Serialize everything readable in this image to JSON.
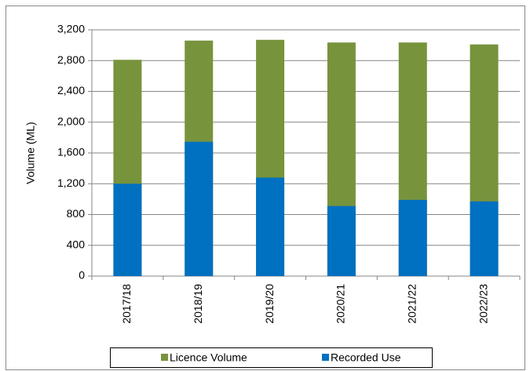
{
  "chart_data": {
    "type": "bar",
    "overlap": true,
    "y_label": "Volume (ML)",
    "categories": [
      "2017/18",
      "2018/19",
      "2019/20",
      "2020/21",
      "2021/22",
      "2022/23"
    ],
    "series": [
      {
        "name": "Licence Volume",
        "color": "#77933c",
        "values": [
          2810,
          3060,
          3070,
          3035,
          3035,
          3010
        ]
      },
      {
        "name": "Recorded Use",
        "color": "#0070c0",
        "values": [
          1200,
          1745,
          1280,
          910,
          990,
          970
        ]
      }
    ],
    "ylim": [
      0,
      3200
    ],
    "yticks": [
      0,
      400,
      800,
      {
        "value": 1200,
        "label": "1,200"
      },
      {
        "value": 1600,
        "label": "1,600"
      },
      {
        "value": 2000,
        "label": "2,000"
      },
      {
        "value": 2400,
        "label": "2,400"
      },
      {
        "value": 2800,
        "label": "2,800"
      },
      {
        "value": 3200,
        "label": "3,200"
      }
    ],
    "grid": true,
    "legend": "bottom"
  }
}
